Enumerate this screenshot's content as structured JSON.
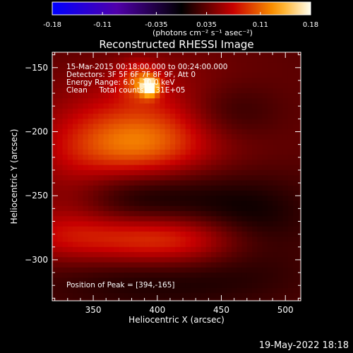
{
  "chart_data": {
    "type": "heatmap",
    "title": "Reconstructed RHESSI Image",
    "xlabel": "Heliocentric X (arcsec)",
    "ylabel": "Heliocentric Y (arcsec)",
    "xlim": [
      318,
      512
    ],
    "ylim": [
      -332,
      -138
    ],
    "x_ticks": [
      350,
      400,
      450,
      500
    ],
    "y_ticks": [
      -150,
      -200,
      -250,
      -300
    ],
    "colorbar": {
      "range": [
        -0.18,
        0.18
      ],
      "ticks": [
        -0.18,
        -0.11,
        -0.035,
        0.035,
        0.11,
        0.18
      ],
      "tick_labels": [
        "-0.18",
        "-0.11",
        "-0.035",
        "0.035",
        "0.11",
        "0.18"
      ],
      "units": "(photons cm⁻² s⁻¹ asec⁻²)"
    },
    "annotations": [
      "15-Mar-2015 00:18:00.000 to 00:24:00.000",
      "Detectors: 3F 5F 6F 7F 8F 9F, Att 0",
      "Energy Range: 6.0 - 10.0 keV",
      "Clean     Total counts: 3.31E+05"
    ],
    "peak_label": "Position of Peak = [394,-165]",
    "peak": {
      "x": 394,
      "y": -165,
      "value": 0.18
    },
    "sources": [
      {
        "x": 394,
        "y": -165,
        "sigma_x": 5,
        "sigma_y": 5,
        "amplitude": 0.13
      },
      {
        "x": 386,
        "y": -160,
        "sigma_x": 11,
        "sigma_y": 10,
        "amplitude": 0.05
      },
      {
        "x": 402,
        "y": -188,
        "sigma_x": 60,
        "sigma_y": 30,
        "amplitude": 0.045
      },
      {
        "x": 380,
        "y": -212,
        "sigma_x": 38,
        "sigma_y": 18,
        "amplitude": 0.06
      },
      {
        "x": 455,
        "y": -185,
        "sigma_x": 30,
        "sigma_y": 18,
        "amplitude": -0.035
      },
      {
        "x": 390,
        "y": -252,
        "sigma_x": 40,
        "sigma_y": 20,
        "amplitude": -0.03
      },
      {
        "x": 330,
        "y": -250,
        "sigma_x": 25,
        "sigma_y": 30,
        "amplitude": 0.02
      },
      {
        "x": 365,
        "y": -282,
        "sigma_x": 60,
        "sigma_y": 14,
        "amplitude": 0.045
      },
      {
        "x": 420,
        "y": -285,
        "sigma_x": 40,
        "sigma_y": 14,
        "amplitude": 0.035
      },
      {
        "x": 470,
        "y": -270,
        "sigma_x": 35,
        "sigma_y": 25,
        "amplitude": -0.03
      },
      {
        "x": 400,
        "y": -318,
        "sigma_x": 70,
        "sigma_y": 15,
        "amplitude": -0.02
      }
    ],
    "background_level": 0.03
  },
  "footer": {
    "date_stamp": "19-May-2022 18:18"
  }
}
